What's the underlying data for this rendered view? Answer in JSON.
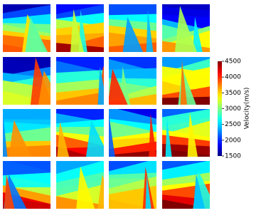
{
  "chart_data": {
    "type": "heatmap",
    "colormap": "jet",
    "colorbar_label": "Velocity(m/s)",
    "clim": [
      1500,
      4500
    ],
    "cticks": [
      1500,
      2000,
      2500,
      3000,
      3500,
      4000,
      4500
    ]
  }
}
